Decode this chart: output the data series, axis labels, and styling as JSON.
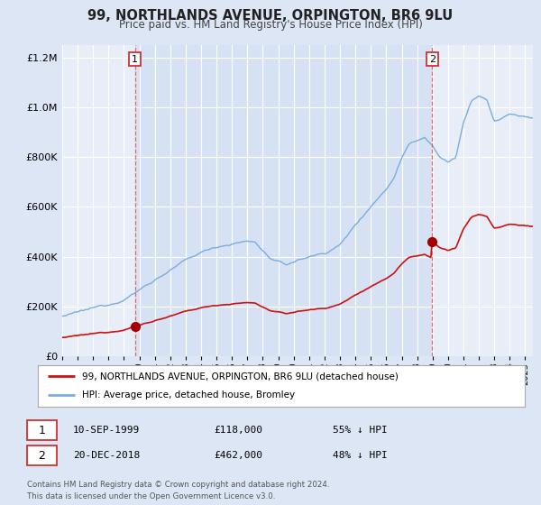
{
  "title": "99, NORTHLANDS AVENUE, ORPINGTON, BR6 9LU",
  "subtitle": "Price paid vs. HM Land Registry's House Price Index (HPI)",
  "background_color": "#dce6f5",
  "plot_bg_color": "#e8eef8",
  "red_line_color": "#cc0000",
  "blue_line_color": "#6699cc",
  "marker1_date": 1999.71,
  "marker1_value": 118000,
  "marker2_date": 2018.97,
  "marker2_value": 462000,
  "vline_color": "#dd5555",
  "legend_label_red": "99, NORTHLANDS AVENUE, ORPINGTON, BR6 9LU (detached house)",
  "legend_label_blue": "HPI: Average price, detached house, Bromley",
  "footer": "Contains HM Land Registry data © Crown copyright and database right 2024.\nThis data is licensed under the Open Government Licence v3.0.",
  "ylim": [
    0,
    1250000
  ],
  "xlim_start": 1995.0,
  "xlim_end": 2025.5,
  "hpi_anchors_x": [
    1995.0,
    1996.0,
    1997.0,
    1998.0,
    1999.0,
    2000.0,
    2001.0,
    2002.0,
    2003.0,
    2004.0,
    2005.0,
    2006.0,
    2007.0,
    2007.5,
    2008.5,
    2009.5,
    2010.0,
    2011.0,
    2012.0,
    2013.0,
    2014.0,
    2015.0,
    2016.0,
    2016.5,
    2017.0,
    2017.5,
    2018.0,
    2018.5,
    2019.0,
    2019.5,
    2020.0,
    2020.5,
    2021.0,
    2021.5,
    2022.0,
    2022.5,
    2023.0,
    2023.5,
    2024.0,
    2024.5,
    2025.5
  ],
  "hpi_anchors_y": [
    160000,
    172000,
    185000,
    200000,
    228000,
    268000,
    310000,
    350000,
    385000,
    415000,
    440000,
    455000,
    465000,
    460000,
    395000,
    365000,
    380000,
    400000,
    415000,
    450000,
    530000,
    610000,
    680000,
    730000,
    810000,
    870000,
    885000,
    900000,
    870000,
    820000,
    800000,
    820000,
    960000,
    1040000,
    1060000,
    1050000,
    960000,
    970000,
    990000,
    980000,
    970000
  ]
}
